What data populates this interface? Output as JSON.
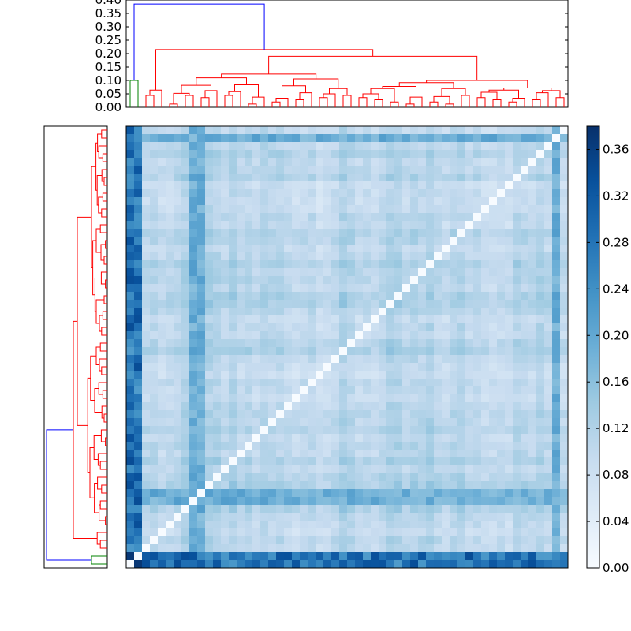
{
  "chart_data": {
    "type": "heatmap",
    "title": "",
    "n": 56,
    "colormap": "Blues",
    "colorbar": {
      "vmin": 0.0,
      "vmax": 0.38,
      "ticks": [
        0.0,
        0.04,
        0.08,
        0.12,
        0.16,
        0.2,
        0.24,
        0.28,
        0.32,
        0.36
      ],
      "tick_labels": [
        "0.00",
        "0.04",
        "0.08",
        "0.12",
        "0.16",
        "0.20",
        "0.24",
        "0.28",
        "0.32",
        "0.36"
      ]
    },
    "top_dendrogram": {
      "ylim": [
        0.0,
        0.4
      ],
      "ticks": [
        0.0,
        0.05,
        0.1,
        0.15,
        0.2,
        0.25,
        0.3,
        0.35,
        0.4
      ],
      "tick_labels": [
        "0.00",
        "0.05",
        "0.10",
        "0.15",
        "0.20",
        "0.25",
        "0.30",
        "0.35",
        "0.40"
      ],
      "cluster_colors": {
        "root": "#0000ff",
        "small_cluster": "#008000",
        "main_cluster": "#ff0000"
      },
      "root_height": 0.385,
      "main_cluster_height": 0.215,
      "small_cluster_height": 0.1,
      "subcluster_heights": [
        0.19,
        0.15,
        0.14,
        0.125,
        0.11,
        0.1,
        0.095,
        0.09,
        0.085
      ]
    },
    "left_dendrogram": {
      "mirror_of": "top_dendrogram",
      "cluster_colors": {
        "root": "#0000ff",
        "small_cluster": "#008000",
        "main_cluster": "#ff0000"
      }
    },
    "matrix_structure": {
      "diagonal_value": 0.0,
      "outlier_rows": [
        0,
        1
      ],
      "outlier_level_range": [
        0.22,
        0.34
      ],
      "secondary_outlier_rows": [
        8,
        9,
        54
      ],
      "secondary_level_range": [
        0.16,
        0.22
      ],
      "background_level_range": [
        0.05,
        0.14
      ]
    }
  }
}
